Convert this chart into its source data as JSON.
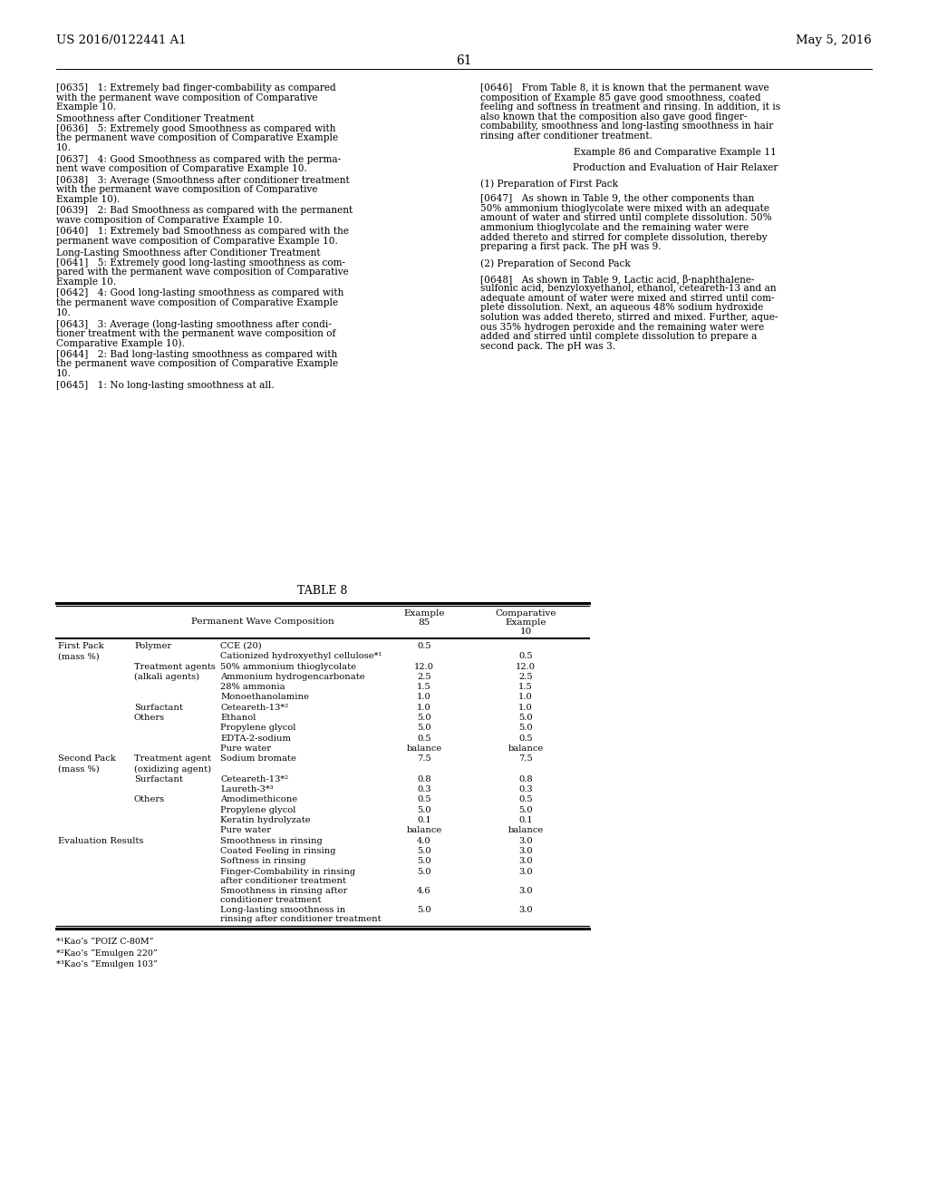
{
  "page_header_left": "US 2016/0122441 A1",
  "page_header_right": "May 5, 2016",
  "page_number": "61",
  "background_color": "#ffffff",
  "left_paragraphs": [
    {
      "type": "para",
      "tag": "[0635]",
      "lines": [
        "[0635]  1: Extremely bad finger-combability as compared",
        "with the permanent wave composition of Comparative",
        "Example 10."
      ]
    },
    {
      "type": "bold",
      "text": "Smoothness after Conditioner Treatment"
    },
    {
      "type": "para",
      "tag": "[0636]",
      "lines": [
        "[0636]  5: Extremely good Smoothness as compared with",
        "the permanent wave composition of Comparative Example",
        "10."
      ]
    },
    {
      "type": "para",
      "tag": "[0637]",
      "lines": [
        "[0637]  4: Good Smoothness as compared with the perma-",
        "nent wave composition of Comparative Example 10."
      ]
    },
    {
      "type": "para",
      "tag": "[0638]",
      "lines": [
        "[0638]  3: Average (Smoothness after conditioner treatment",
        "with the permanent wave composition of Comparative",
        "Example 10)."
      ]
    },
    {
      "type": "para",
      "tag": "[0639]",
      "lines": [
        "[0639]  2: Bad Smoothness as compared with the permanent",
        "wave composition of Comparative Example 10."
      ]
    },
    {
      "type": "para",
      "tag": "[0640]",
      "lines": [
        "[0640]  1: Extremely bad Smoothness as compared with the",
        "permanent wave composition of Comparative Example 10."
      ]
    },
    {
      "type": "bold",
      "text": "Long-Lasting Smoothness after Conditioner Treatment"
    },
    {
      "type": "para",
      "tag": "[0641]",
      "lines": [
        "[0641]  5: Extremely good long-lasting smoothness as com-",
        "pared with the permanent wave composition of Comparative",
        "Example 10."
      ]
    },
    {
      "type": "para",
      "tag": "[0642]",
      "lines": [
        "[0642]  4: Good long-lasting smoothness as compared with",
        "the permanent wave composition of Comparative Example",
        "10."
      ]
    },
    {
      "type": "para",
      "tag": "[0643]",
      "lines": [
        "[0643]  3: Average (long-lasting smoothness after condi-",
        "tioner treatment with the permanent wave composition of",
        "Comparative Example 10)."
      ]
    },
    {
      "type": "para",
      "tag": "[0644]",
      "lines": [
        "[0644]  2: Bad long-lasting smoothness as compared with",
        "the permanent wave composition of Comparative Example",
        "10."
      ]
    },
    {
      "type": "para",
      "tag": "[0645]",
      "lines": [
        "[0645]  1: No long-lasting smoothness at all."
      ]
    }
  ],
  "right_paragraphs": [
    {
      "type": "para",
      "tag": "[0646]",
      "lines": [
        "[0646]  From Table 8, it is known that the permanent wave",
        "composition of Example 85 gave good smoothness, coated",
        "feeling and softness in treatment and rinsing. In addition, it is",
        "also known that the composition also gave good finger-",
        "combability, smoothness and long-lasting smoothness in hair",
        "rinsing after conditioner treatment."
      ]
    },
    {
      "type": "gap"
    },
    {
      "type": "center",
      "text": "Example 86 and Comparative Example 11"
    },
    {
      "type": "gap"
    },
    {
      "type": "center",
      "text": "Production and Evaluation of Hair Relaxer"
    },
    {
      "type": "gap"
    },
    {
      "type": "plain",
      "text": "(1) Preparation of First Pack"
    },
    {
      "type": "gap"
    },
    {
      "type": "para",
      "tag": "[0647]",
      "lines": [
        "[0647]  As shown in Table 9, the other components than",
        "50% ammonium thioglycolate were mixed with an adequate",
        "amount of water and stirred until complete dissolution. 50%",
        "ammonium thioglycolate and the remaining water were",
        "added thereto and stirred for complete dissolution, thereby",
        "preparing a first pack. The pH was 9."
      ]
    },
    {
      "type": "gap"
    },
    {
      "type": "plain",
      "text": "(2) Preparation of Second Pack"
    },
    {
      "type": "gap"
    },
    {
      "type": "para",
      "tag": "[0648]",
      "lines": [
        "[0648]  As shown in Table 9, Lactic acid, β-naphthalene-",
        "sulfonic acid, benzyloxyethanol, ethanol, ceteareth-13 and an",
        "adequate amount of water were mixed and stirred until com-",
        "plete dissolution. Next, an aqueous 48% sodium hydroxide",
        "solution was added thereto, stirred and mixed. Further, aque-",
        "ous 35% hydrogen peroxide and the remaining water were",
        "added and stirred until complete dissolution to prepare a",
        "second pack. The pH was 3."
      ]
    }
  ],
  "table_title": "TABLE 8",
  "table_rows": [
    {
      "col0": "First Pack",
      "col1": "Polymer",
      "col2": "CCE (20)",
      "col3": "0.5",
      "col4": ""
    },
    {
      "col0": "(mass %)",
      "col1": "",
      "col2": "Cationized hydroxyethyl cellulose*¹",
      "col3": "",
      "col4": "0.5"
    },
    {
      "col0": "",
      "col1": "Treatment agents",
      "col2": "50% ammonium thioglycolate",
      "col3": "12.0",
      "col4": "12.0"
    },
    {
      "col0": "",
      "col1": "(alkali agents)",
      "col2": "Ammonium hydrogencarbonate",
      "col3": "2.5",
      "col4": "2.5"
    },
    {
      "col0": "",
      "col1": "",
      "col2": "28% ammonia",
      "col3": "1.5",
      "col4": "1.5"
    },
    {
      "col0": "",
      "col1": "",
      "col2": "Monoethanolamine",
      "col3": "1.0",
      "col4": "1.0"
    },
    {
      "col0": "",
      "col1": "Surfactant",
      "col2": "Ceteareth-13*²",
      "col3": "1.0",
      "col4": "1.0"
    },
    {
      "col0": "",
      "col1": "Others",
      "col2": "Ethanol",
      "col3": "5.0",
      "col4": "5.0"
    },
    {
      "col0": "",
      "col1": "",
      "col2": "Propylene glycol",
      "col3": "5.0",
      "col4": "5.0"
    },
    {
      "col0": "",
      "col1": "",
      "col2": "EDTA-2-sodium",
      "col3": "0.5",
      "col4": "0.5"
    },
    {
      "col0": "",
      "col1": "",
      "col2": "Pure water",
      "col3": "balance",
      "col4": "balance"
    },
    {
      "col0": "Second Pack",
      "col1": "Treatment agent",
      "col2": "Sodium bromate",
      "col3": "7.5",
      "col4": "7.5"
    },
    {
      "col0": "(mass %)",
      "col1": "(oxidizing agent)",
      "col2": "",
      "col3": "",
      "col4": ""
    },
    {
      "col0": "",
      "col1": "Surfactant",
      "col2": "Ceteareth-13*²",
      "col3": "0.8",
      "col4": "0.8"
    },
    {
      "col0": "",
      "col1": "",
      "col2": "Laureth-3*³",
      "col3": "0.3",
      "col4": "0.3"
    },
    {
      "col0": "",
      "col1": "Others",
      "col2": "Amodimethicone",
      "col3": "0.5",
      "col4": "0.5"
    },
    {
      "col0": "",
      "col1": "",
      "col2": "Propylene glycol",
      "col3": "5.0",
      "col4": "5.0"
    },
    {
      "col0": "",
      "col1": "",
      "col2": "Keratin hydrolyzate",
      "col3": "0.1",
      "col4": "0.1"
    },
    {
      "col0": "",
      "col1": "",
      "col2": "Pure water",
      "col3": "balance",
      "col4": "balance"
    },
    {
      "col0": "Evaluation Results",
      "col1": "",
      "col2": "Smoothness in rinsing",
      "col3": "4.0",
      "col4": "3.0"
    },
    {
      "col0": "",
      "col1": "",
      "col2": "Coated Feeling in rinsing",
      "col3": "5.0",
      "col4": "3.0"
    },
    {
      "col0": "",
      "col1": "",
      "col2": "Softness in rinsing",
      "col3": "5.0",
      "col4": "3.0"
    },
    {
      "col0": "",
      "col1": "",
      "col2": "Finger-Combability in rinsing\nafter conditioner treatment",
      "col3": "5.0",
      "col4": "3.0"
    },
    {
      "col0": "",
      "col1": "",
      "col2": "Smoothness in rinsing after\nconditioner treatment",
      "col3": "4.6",
      "col4": "3.0"
    },
    {
      "col0": "",
      "col1": "",
      "col2": "Long-lasting smoothness in\nrinsing after conditioner treatment",
      "col3": "5.0",
      "col4": "3.0"
    }
  ],
  "footnotes": [
    "*¹Kao’s “POIZ C-80M”",
    "*²Kao’s “Emulgen 220”",
    "*³Kao’s “Emulgen 103”"
  ]
}
